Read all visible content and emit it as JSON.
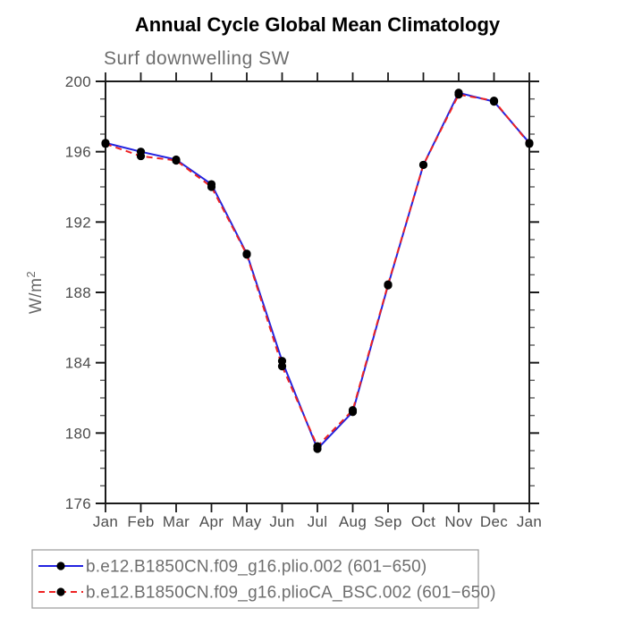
{
  "title": "Annual Cycle Global Mean Climatology",
  "subtitle": "Surf downwelling SW",
  "ylabel": "W/m²",
  "palette": {
    "series1_line": "#2222e0",
    "series2_line": "#ee2222",
    "marker": "#000000",
    "axis": "#1a1a1a",
    "minor_tick": "#5a5a5a",
    "tick_label": "#4d4d4d",
    "muted_text": "#6e6e6e",
    "legend_border": "#a0a0a0"
  },
  "chart_data": {
    "type": "line",
    "categories": [
      "Jan",
      "Feb",
      "Mar",
      "Apr",
      "May",
      "Jun",
      "Jul",
      "Aug",
      "Sep",
      "Oct",
      "Nov",
      "Dec",
      "Jan"
    ],
    "series": [
      {
        "name": "b.e12.B1850CN.f09_g16.plio.002 (601−650)",
        "color": "#2222e0",
        "line_style": "solid",
        "marker": "black-circle",
        "values": [
          196.5,
          196.0,
          195.55,
          194.15,
          190.2,
          184.1,
          179.1,
          181.2,
          188.4,
          195.25,
          199.35,
          198.85,
          196.5
        ]
      },
      {
        "name": "b.e12.B1850CN.f09_g16.plioCA_BSC.002 (601−650)",
        "color": "#ee2222",
        "line_style": "dashed",
        "marker": "black-circle",
        "values": [
          196.45,
          195.75,
          195.5,
          194.0,
          190.15,
          183.8,
          179.25,
          181.3,
          188.45,
          195.25,
          199.25,
          198.9,
          196.45
        ]
      }
    ],
    "title": "Annual Cycle Global Mean Climatology",
    "subtitle": "Surf downwelling SW",
    "xlabel": "",
    "ylabel": "W/m²",
    "ylim": [
      176,
      200
    ],
    "ytick_major_step": 4,
    "ytick_minor_step": 1,
    "ytick_labels": [
      "176",
      "180",
      "184",
      "188",
      "192",
      "196",
      "200"
    ],
    "grid": "off",
    "legend_position": "bottom-left"
  }
}
